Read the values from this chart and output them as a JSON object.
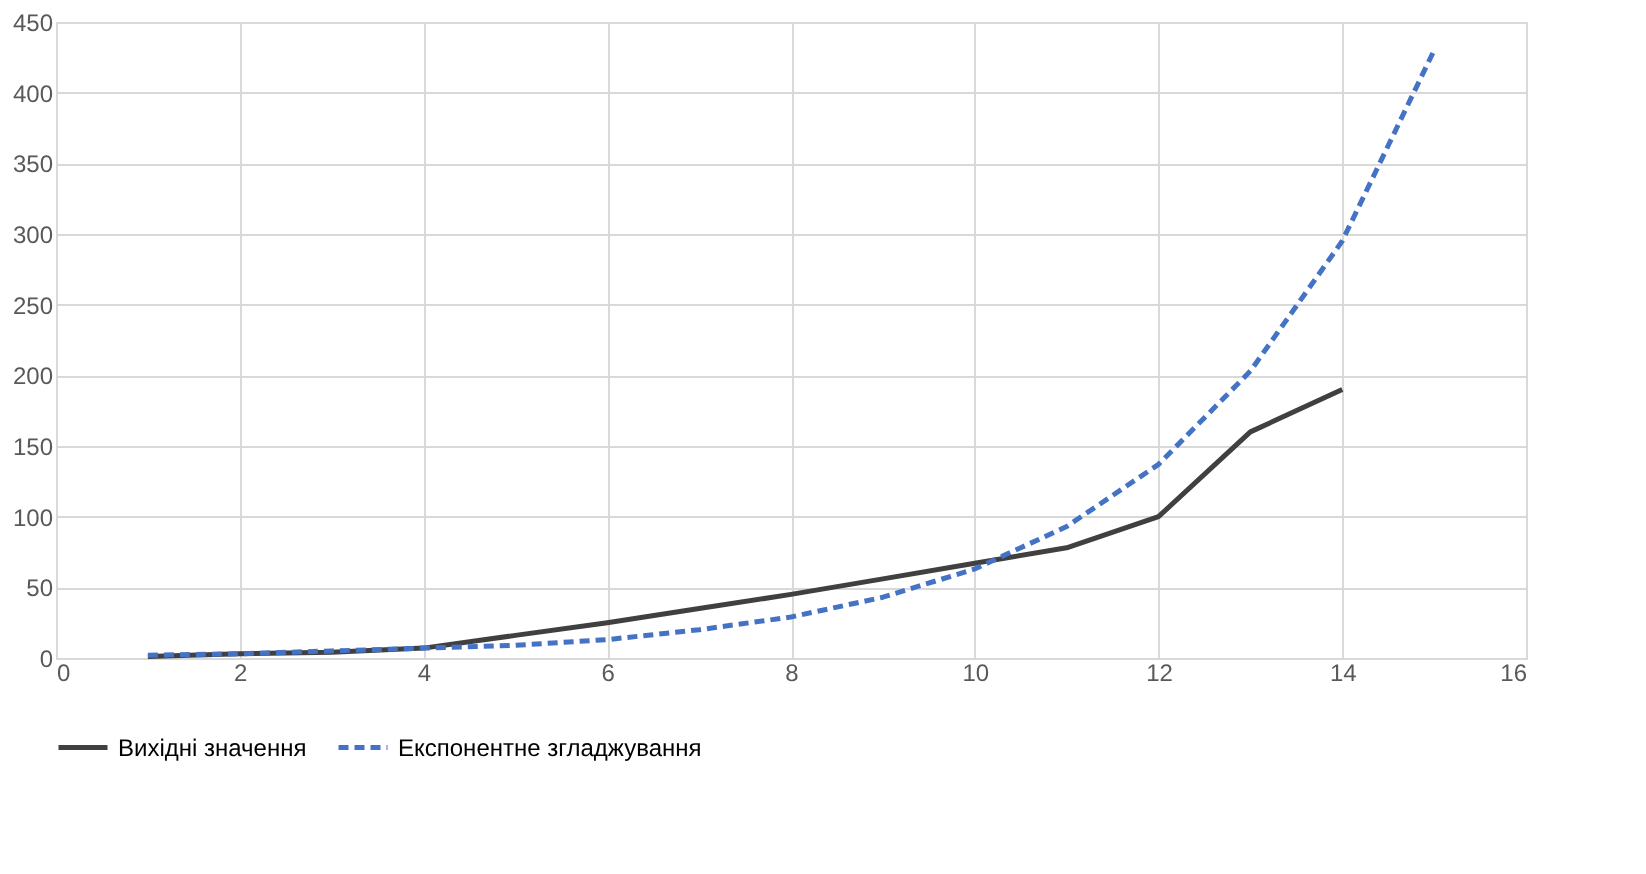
{
  "chart_data": {
    "type": "line",
    "legend": "bottom",
    "grid": true,
    "marker": "none",
    "xlim": [
      0,
      16
    ],
    "xticks": [
      0,
      2,
      4,
      6,
      8,
      10,
      12,
      14,
      16
    ],
    "ylim": [
      0,
      450
    ],
    "yticks": [
      0,
      50,
      100,
      150,
      200,
      250,
      300,
      350,
      400,
      450
    ],
    "series": [
      {
        "name": "Вихідні значення",
        "color": "#404040",
        "line_style": "solid",
        "x": [
          1,
          2,
          3,
          4,
          5,
          6,
          7,
          8,
          9,
          10,
          11,
          12,
          13,
          14
        ],
        "values": [
          1,
          3,
          4,
          7,
          16,
          25,
          35,
          45,
          56,
          67,
          78,
          100,
          160,
          190
        ]
      },
      {
        "name": "Експонентне згладжування",
        "color": "#4472c4",
        "line_style": "dashed",
        "x": [
          1,
          2,
          3,
          4,
          5,
          6,
          7,
          8,
          9,
          10,
          11,
          12,
          13,
          14,
          15
        ],
        "values": [
          2,
          3,
          5,
          7,
          9,
          13,
          20,
          29,
          43,
          63,
          93,
          137,
          203,
          295,
          430
        ]
      }
    ]
  }
}
